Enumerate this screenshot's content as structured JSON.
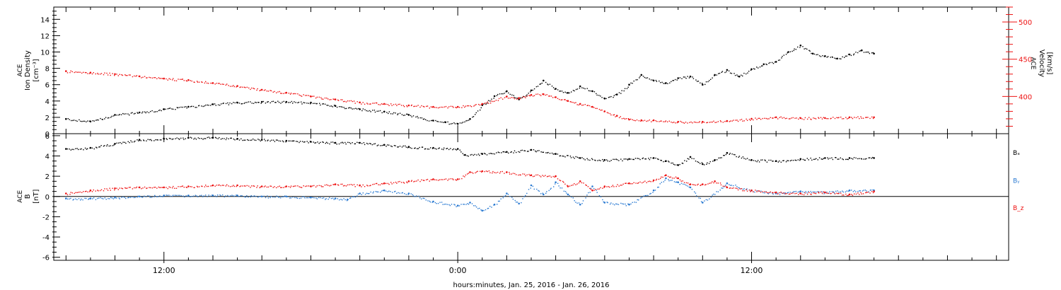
{
  "chart_data": [
    {
      "type": "scatter",
      "panel": "upper",
      "ylabel_left": [
        "ACE",
        "Ion Density",
        "[cm⁻³]"
      ],
      "ylabel_right": [
        "ACE",
        "Velocity",
        "[km/s]"
      ],
      "ylim_left": [
        0,
        15.5
      ],
      "ylim_right": [
        350,
        520
      ],
      "yticks_left": [
        "0",
        "2",
        "4",
        "6",
        "8",
        "10",
        "12",
        "14"
      ],
      "yticks_right": [
        "400",
        "450",
        "500"
      ],
      "xlim_hours": [
        7.5,
        46.5
      ],
      "grid": false,
      "series": [
        {
          "axis": "left",
          "color": "#000000",
          "x": [
            8,
            9,
            10,
            11,
            12,
            13,
            14,
            15,
            16,
            17,
            18,
            19,
            20,
            21,
            22,
            23,
            23.5,
            24,
            24.5,
            25,
            25.5,
            26,
            26.5,
            27,
            27.5,
            28,
            28.5,
            29,
            29.5,
            30,
            30.5,
            31,
            31.5,
            32,
            32.5,
            33,
            33.5,
            34,
            34.5,
            35,
            35.5,
            36,
            36.5,
            37,
            37.5,
            38,
            38.5,
            39,
            39.5,
            40,
            40.5,
            41
          ],
          "y": [
            1.8,
            1.5,
            2.3,
            2.6,
            3.0,
            3.3,
            3.6,
            3.8,
            3.9,
            3.9,
            3.8,
            3.4,
            3.0,
            2.7,
            2.3,
            1.6,
            1.4,
            1.2,
            1.8,
            3.5,
            4.6,
            5.2,
            4.2,
            5.3,
            6.5,
            5.5,
            5.0,
            5.8,
            5.2,
            4.3,
            4.8,
            6.0,
            7.2,
            6.5,
            6.2,
            6.8,
            7.0,
            6.0,
            7.2,
            7.8,
            7.0,
            7.9,
            8.5,
            8.8,
            10.0,
            10.8,
            9.8,
            9.5,
            9.2,
            9.7,
            10.2,
            9.8
          ]
        },
        {
          "axis": "right",
          "color": "#ee1111",
          "x": [
            8,
            9,
            10,
            11,
            12,
            13,
            14,
            15,
            16,
            17,
            18,
            19,
            20,
            21,
            22,
            23,
            24,
            25,
            26,
            26.5,
            27,
            27.5,
            28,
            28.5,
            29,
            29.5,
            30,
            30.5,
            31,
            31.5,
            32,
            33,
            34,
            35,
            36,
            37,
            38,
            39,
            40,
            41
          ],
          "y": [
            434,
            432,
            430,
            427,
            424,
            422,
            418,
            414,
            409,
            405,
            400,
            396,
            392,
            390,
            388,
            386,
            386,
            390,
            400,
            398,
            402,
            403,
            399,
            394,
            390,
            386,
            380,
            374,
            369,
            368,
            368,
            366,
            366,
            367,
            370,
            372,
            371,
            371,
            372,
            372
          ]
        }
      ]
    },
    {
      "type": "scatter",
      "panel": "lower",
      "ylabel_left": [
        "ACE",
        "B",
        "[nT]"
      ],
      "ylim": [
        -6.3,
        6.2
      ],
      "yticks": [
        "-6",
        "-4",
        "-2",
        "0",
        "2",
        "4",
        "6"
      ],
      "xlim_hours": [
        7.5,
        46.5
      ],
      "zero_line": true,
      "grid": false,
      "series": [
        {
          "name": "Bₓ",
          "color": "#000000",
          "x": [
            8,
            9,
            10,
            11,
            12,
            13,
            14,
            15,
            16,
            17,
            18,
            19,
            20,
            21,
            22,
            23,
            24,
            24.3,
            25,
            26,
            27,
            28,
            29,
            30,
            31,
            32,
            32.5,
            33,
            33.5,
            34,
            34.5,
            35,
            36,
            37,
            38,
            39,
            40,
            41
          ],
          "y": [
            4.7,
            4.8,
            5.2,
            5.6,
            5.7,
            5.8,
            5.8,
            5.7,
            5.6,
            5.5,
            5.4,
            5.3,
            5.3,
            5.1,
            4.9,
            4.8,
            4.7,
            4.1,
            4.2,
            4.4,
            4.6,
            4.2,
            3.8,
            3.6,
            3.7,
            3.8,
            3.5,
            3.1,
            3.9,
            3.2,
            3.6,
            4.3,
            3.6,
            3.5,
            3.7,
            3.8,
            3.8,
            3.8
          ]
        },
        {
          "name": "Bᵧ",
          "color": "#2a7ad2",
          "x": [
            8,
            9,
            10,
            11,
            12,
            13,
            14,
            15,
            16,
            17,
            18,
            19,
            19.5,
            20,
            21,
            22,
            23,
            24,
            24.5,
            25,
            25.5,
            26,
            26.5,
            27,
            27.5,
            28,
            28.5,
            29,
            29.5,
            30,
            31,
            32,
            32.5,
            33,
            33.5,
            34,
            35,
            36,
            37,
            38,
            39,
            40,
            41
          ],
          "y": [
            -0.2,
            -0.2,
            -0.1,
            0.0,
            0.1,
            0.1,
            0.1,
            0.1,
            0.0,
            0.0,
            -0.1,
            -0.2,
            -0.3,
            0.3,
            0.6,
            0.3,
            -0.5,
            -0.9,
            -0.6,
            -1.4,
            -0.8,
            0.3,
            -0.7,
            1.1,
            0.2,
            1.4,
            0.2,
            -0.8,
            1.0,
            -0.6,
            -0.8,
            0.6,
            1.8,
            1.4,
            0.9,
            -0.6,
            1.3,
            0.6,
            0.3,
            0.5,
            0.4,
            0.6,
            0.6
          ]
        },
        {
          "name": "B_z",
          "color": "#ee1111",
          "x": [
            8,
            9,
            10,
            11,
            12,
            13,
            14,
            15,
            16,
            17,
            18,
            19,
            20,
            21,
            22,
            23,
            24,
            24.5,
            25,
            26,
            27,
            28,
            28.5,
            29,
            29.5,
            30,
            31,
            32,
            32.5,
            33,
            33.5,
            34,
            34.5,
            35,
            36,
            37,
            38,
            39,
            40,
            41
          ],
          "y": [
            0.3,
            0.6,
            0.8,
            0.9,
            0.9,
            1.0,
            1.1,
            1.1,
            1.0,
            1.0,
            1.0,
            1.2,
            1.1,
            1.3,
            1.5,
            1.7,
            1.7,
            2.4,
            2.5,
            2.4,
            2.1,
            2.0,
            1.0,
            1.5,
            0.6,
            1.0,
            1.3,
            1.6,
            2.1,
            1.8,
            1.2,
            1.2,
            1.5,
            0.9,
            0.6,
            0.4,
            0.3,
            0.4,
            0.2,
            0.5
          ]
        }
      ]
    }
  ],
  "x_axis": {
    "ticks": [
      {
        "hour": 12,
        "label": "12:00"
      },
      {
        "hour": 24,
        "label": "0:00"
      },
      {
        "hour": 36,
        "label": "12:00"
      }
    ],
    "label": "hours:minutes, Jan. 25, 2016 - Jan. 26, 2016"
  },
  "colors": {
    "density": "#000000",
    "velocity": "#ee1111",
    "bx": "#000000",
    "by": "#2a7ad2",
    "bz": "#ee1111",
    "axes": "#000000"
  }
}
